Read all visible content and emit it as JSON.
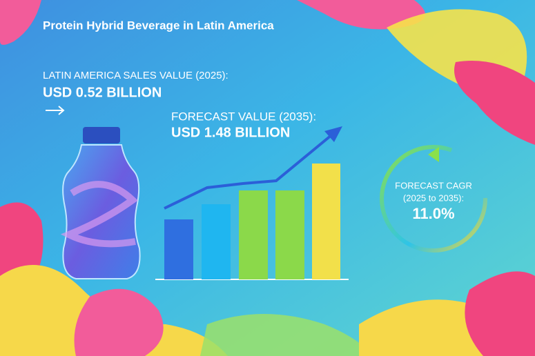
{
  "header": {
    "title": "Protein Hybrid Beverage in Latin America"
  },
  "sales": {
    "label": "LATIN AMERICA SALES VALUE (2025):",
    "value": "USD 0.52 BILLION"
  },
  "forecast": {
    "label": "FORECAST VALUE (2035):",
    "value": "USD 1.48 BILLION"
  },
  "cagr": {
    "label_line1": "FORECAST CAGR",
    "label_line2": "(2025 to 2035):",
    "value": "11.0%"
  }
}
